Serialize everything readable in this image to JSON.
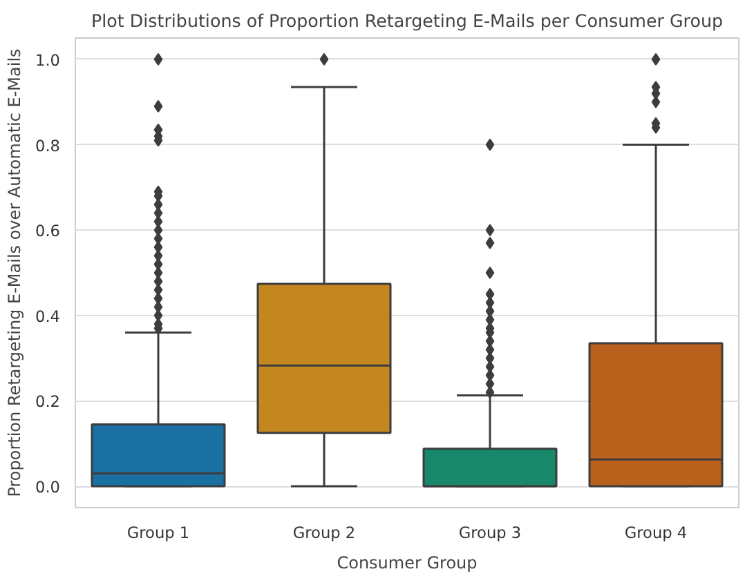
{
  "chart_data": {
    "type": "box",
    "title": "Plot Distributions of Proportion Retargeting E-Mails per Consumer Group",
    "xlabel": "Consumer Group",
    "ylabel": "Proportion Retargeting E-Mails over Automatic E-Mails",
    "categories": [
      "Group 1",
      "Group 2",
      "Group 3",
      "Group 4"
    ],
    "colors": [
      "#1a6fa3",
      "#c4871f",
      "#17896a",
      "#b9601c"
    ],
    "boxes": [
      {
        "low": 0,
        "q1": 0,
        "median": 0.03,
        "q3": 0.145,
        "high": 0.36,
        "outliers": [
          0.37,
          0.38,
          0.4,
          0.42,
          0.44,
          0.46,
          0.48,
          0.5,
          0.52,
          0.54,
          0.56,
          0.58,
          0.6,
          0.62,
          0.64,
          0.66,
          0.68,
          0.69,
          0.81,
          0.82,
          0.835,
          0.89,
          1.0
        ]
      },
      {
        "low": 0,
        "q1": 0.125,
        "median": 0.283,
        "q3": 0.474,
        "high": 0.935,
        "outliers": [
          1.0
        ]
      },
      {
        "low": 0,
        "q1": 0,
        "median": 0,
        "q3": 0.088,
        "high": 0.213,
        "outliers": [
          0.22,
          0.24,
          0.26,
          0.28,
          0.3,
          0.32,
          0.34,
          0.36,
          0.37,
          0.39,
          0.41,
          0.43,
          0.45,
          0.5,
          0.57,
          0.6,
          0.8
        ]
      },
      {
        "low": 0,
        "q1": 0,
        "median": 0.063,
        "q3": 0.335,
        "high": 0.8,
        "outliers": [
          0.84,
          0.85,
          0.9,
          0.92,
          0.935,
          1.0
        ]
      }
    ],
    "ylim": [
      -0.05,
      1.05
    ],
    "yticks": [
      {
        "value": 0,
        "label": "0.0"
      },
      {
        "value": 0.2,
        "label": "0.2"
      },
      {
        "value": 0.4,
        "label": "0.4"
      },
      {
        "value": 0.6,
        "label": "0.6"
      },
      {
        "value": 0.8,
        "label": "0.8"
      },
      {
        "value": 1,
        "label": "1.0"
      }
    ],
    "grid": "y",
    "marker": "diamond"
  }
}
